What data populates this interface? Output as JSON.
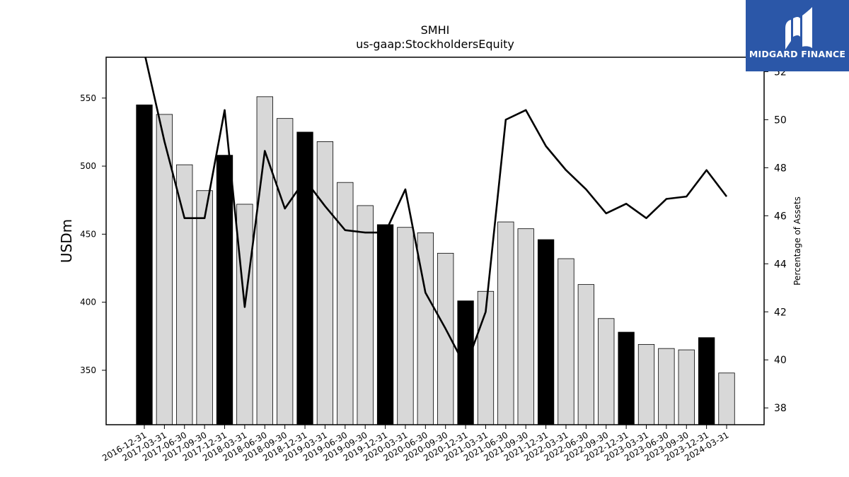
{
  "brand": {
    "name": "MIDGARD FINANCE",
    "logo_icon": "midgard-finance-logo-icon",
    "color": "#2b57a8"
  },
  "chart_data": {
    "type": "bar",
    "title": "SMHI",
    "subtitle": "us-gaap:StockholdersEquity",
    "ylabel": "USDm",
    "y2label": "Percentage of Assets",
    "ylim": [
      310,
      580
    ],
    "y2lim": [
      37.3,
      52.6
    ],
    "yticks": [
      350,
      400,
      450,
      500,
      550
    ],
    "y2ticks": [
      38,
      40,
      42,
      44,
      46,
      48,
      50,
      52
    ],
    "categories": [
      "2016-12-31",
      "2017-03-31",
      "2017-06-30",
      "2017-09-30",
      "2017-12-31",
      "2018-03-31",
      "2018-06-30",
      "2018-09-30",
      "2018-12-31",
      "2019-03-31",
      "2019-06-30",
      "2019-09-30",
      "2019-12-31",
      "2020-03-31",
      "2020-06-30",
      "2020-09-30",
      "2020-12-31",
      "2021-03-31",
      "2021-06-30",
      "2021-09-30",
      "2021-12-31",
      "2022-03-31",
      "2022-06-30",
      "2022-09-30",
      "2022-12-31",
      "2023-03-31",
      "2023-06-30",
      "2023-09-30",
      "2023-12-31",
      "2024-03-31"
    ],
    "series": [
      {
        "kind": "bar",
        "axis": "left",
        "values": [
          545,
          538,
          501,
          482,
          508,
          472,
          551,
          535,
          525,
          518,
          488,
          471,
          457,
          455,
          451,
          436,
          401,
          408,
          459,
          454,
          446,
          432,
          413,
          388,
          378,
          369,
          366,
          365,
          374,
          348
        ],
        "highlight": [
          true,
          false,
          false,
          false,
          true,
          false,
          false,
          false,
          true,
          false,
          false,
          false,
          true,
          false,
          false,
          false,
          true,
          false,
          false,
          false,
          true,
          false,
          false,
          false,
          true,
          false,
          false,
          false,
          true,
          false
        ],
        "color_highlight": "#000000",
        "color_normal": "#d8d8d8"
      },
      {
        "kind": "line",
        "axis": "right",
        "values": [
          52.8,
          49.1,
          45.9,
          45.9,
          50.4,
          42.2,
          48.7,
          46.3,
          47.5,
          46.4,
          45.4,
          45.3,
          45.3,
          47.1,
          42.8,
          41.3,
          39.7,
          42.0,
          50.0,
          50.4,
          48.9,
          47.9,
          47.1,
          46.1,
          46.5,
          45.9,
          46.7,
          46.8,
          47.9,
          46.8
        ],
        "color": "#000000"
      }
    ],
    "grid": false,
    "legend": "none"
  }
}
